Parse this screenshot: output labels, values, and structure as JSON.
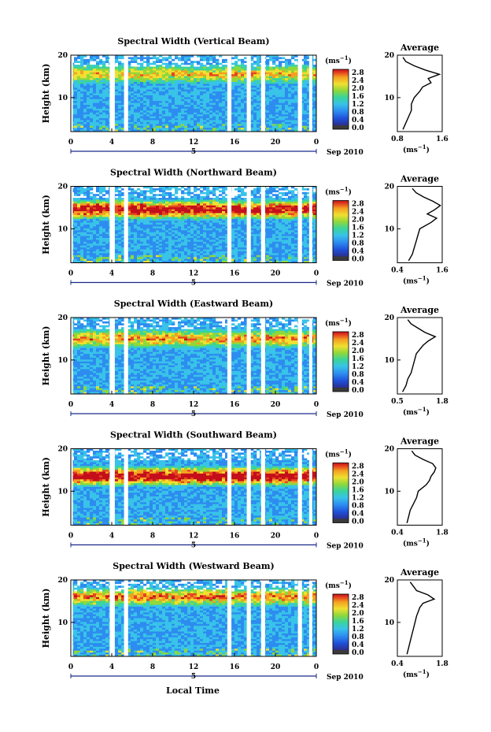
{
  "figure": {
    "x_axis_title": "Local Time",
    "colorbar_unit_main": "(ms",
    "colorbar_unit_exp": "−1",
    "colorbar_unit_close": ")",
    "colorbar_ticks": [
      "2.8",
      "2.4",
      "2.0",
      "1.6",
      "1.2",
      "0.8",
      "0.4",
      "0.0"
    ],
    "average_title": "Average",
    "profile_unit_main": "(ms",
    "profile_unit_exp": "−1",
    "profile_unit_close": ")",
    "date_day": "5",
    "date_label": "Sep 2010",
    "colors": {
      "colormap": [
        "#2b2f8f",
        "#1f4fd8",
        "#2d8cf0",
        "#38c3e8",
        "#3ad49a",
        "#8fd83a",
        "#f0e030",
        "#f4a021",
        "#e5461f",
        "#c40f1a"
      ],
      "min_band": "#3a3a3a"
    }
  },
  "chart_data": [
    {
      "type": "heatmap",
      "title": "Spectral Width (Vertical Beam)",
      "xlabel": "",
      "ylabel": "Height (km)",
      "x_ticks": [
        "0",
        "4",
        "8",
        "12",
        "16",
        "20",
        "0"
      ],
      "y_ticks": [
        "20",
        "10"
      ],
      "xlim": [
        0,
        24
      ],
      "ylim": [
        2,
        20
      ],
      "gaps_hours": [
        [
          0.0,
          0.2
        ],
        [
          3.8,
          4.3
        ],
        [
          5.2,
          5.6
        ],
        [
          15.3,
          15.7
        ],
        [
          17.2,
          17.6
        ],
        [
          18.6,
          19.0
        ],
        [
          22.2,
          22.6
        ],
        [
          23.3,
          23.6
        ]
      ],
      "profile": {
        "xlim": [
          0.8,
          1.6
        ],
        "x_ticks": [
          "0.8",
          "1.6"
        ],
        "y_ticks": [
          "20",
          "10"
        ],
        "heights": [
          2.5,
          4,
          5.5,
          7,
          8.5,
          10,
          11.5,
          12.5,
          13.5,
          14.5,
          15.5,
          16.5,
          17.5,
          18.5,
          19.5
        ],
        "values": [
          0.9,
          0.95,
          1.0,
          1.05,
          1.05,
          1.1,
          1.2,
          1.25,
          1.4,
          1.35,
          1.55,
          1.3,
          1.1,
          0.95,
          0.9
        ]
      }
    },
    {
      "type": "heatmap",
      "title": "Spectral Width (Northward Beam)",
      "xlabel": "",
      "ylabel": "Height (km)",
      "x_ticks": [
        "0",
        "4",
        "8",
        "12",
        "16",
        "20",
        "0"
      ],
      "y_ticks": [
        "20",
        "10"
      ],
      "xlim": [
        0,
        24
      ],
      "ylim": [
        2,
        20
      ],
      "gaps_hours": [
        [
          0.0,
          0.2
        ],
        [
          3.8,
          4.3
        ],
        [
          5.2,
          5.6
        ],
        [
          15.3,
          15.7
        ],
        [
          17.2,
          17.6
        ],
        [
          18.6,
          19.0
        ],
        [
          22.2,
          22.6
        ],
        [
          23.3,
          23.6
        ]
      ],
      "profile": {
        "xlim": [
          0.4,
          1.6
        ],
        "x_ticks": [
          "0.4",
          "1.6"
        ],
        "y_ticks": [
          "20",
          "10"
        ],
        "heights": [
          2.5,
          4,
          5.5,
          7,
          8.5,
          10,
          11.5,
          12.5,
          13.5,
          14.5,
          15.5,
          16.5,
          17.5,
          18.5,
          19.5
        ],
        "values": [
          0.7,
          0.8,
          0.85,
          0.9,
          0.95,
          1.0,
          1.3,
          1.45,
          1.2,
          1.4,
          1.55,
          1.35,
          1.1,
          0.9,
          0.8
        ]
      }
    },
    {
      "type": "heatmap",
      "title": "Spectral Width (Eastward Beam)",
      "xlabel": "",
      "ylabel": "Height (km)",
      "x_ticks": [
        "0",
        "4",
        "8",
        "12",
        "16",
        "20",
        "0"
      ],
      "y_ticks": [
        "20",
        "10"
      ],
      "xlim": [
        0,
        24
      ],
      "ylim": [
        2,
        20
      ],
      "gaps_hours": [
        [
          0.0,
          0.2
        ],
        [
          3.8,
          4.3
        ],
        [
          5.2,
          5.6
        ],
        [
          15.3,
          15.7
        ],
        [
          17.2,
          17.6
        ],
        [
          18.6,
          19.0
        ],
        [
          22.2,
          22.6
        ],
        [
          23.3,
          23.6
        ]
      ],
      "profile": {
        "xlim": [
          0.5,
          1.8
        ],
        "x_ticks": [
          "0.5",
          "1.8"
        ],
        "y_ticks": [
          "20",
          "10"
        ],
        "heights": [
          2.5,
          4,
          5.5,
          7,
          8.5,
          10,
          11.5,
          12.5,
          13.5,
          14.5,
          15.5,
          16.5,
          17.5,
          18.5,
          19.5
        ],
        "values": [
          0.65,
          0.75,
          0.8,
          0.9,
          0.95,
          1.0,
          1.05,
          1.15,
          1.25,
          1.4,
          1.6,
          1.3,
          1.1,
          0.9,
          0.8
        ]
      }
    },
    {
      "type": "heatmap",
      "title": "Spectral Width (Southward Beam)",
      "xlabel": "",
      "ylabel": "Height (km)",
      "x_ticks": [
        "0",
        "4",
        "8",
        "12",
        "16",
        "20",
        "0"
      ],
      "y_ticks": [
        "20",
        "10"
      ],
      "xlim": [
        0,
        24
      ],
      "ylim": [
        2,
        20
      ],
      "gaps_hours": [
        [
          0.0,
          0.2
        ],
        [
          3.8,
          4.3
        ],
        [
          5.2,
          5.6
        ],
        [
          15.3,
          15.7
        ],
        [
          17.2,
          17.6
        ],
        [
          18.6,
          19.0
        ],
        [
          22.2,
          22.6
        ],
        [
          23.3,
          23.6
        ]
      ],
      "profile": {
        "xlim": [
          0.4,
          1.8
        ],
        "x_ticks": [
          "0.4",
          "1.8"
        ],
        "y_ticks": [
          "20",
          "10"
        ],
        "heights": [
          2.5,
          4,
          5.5,
          7,
          8.5,
          10,
          11.5,
          12.5,
          13.5,
          14.5,
          15.5,
          16.5,
          17.5,
          18.5,
          19.5
        ],
        "values": [
          0.7,
          0.75,
          0.8,
          0.9,
          1.0,
          1.05,
          1.3,
          1.4,
          1.45,
          1.55,
          1.6,
          1.5,
          1.2,
          0.95,
          0.85
        ]
      }
    },
    {
      "type": "heatmap",
      "title": "Spectral Width (Westward Beam)",
      "xlabel": "Local Time",
      "ylabel": "Height (km)",
      "x_ticks": [
        "0",
        "4",
        "8",
        "12",
        "16",
        "20",
        "0"
      ],
      "y_ticks": [
        "20",
        "10"
      ],
      "xlim": [
        0,
        24
      ],
      "ylim": [
        2,
        20
      ],
      "gaps_hours": [
        [
          0.0,
          0.2
        ],
        [
          3.8,
          4.3
        ],
        [
          5.2,
          5.6
        ],
        [
          15.3,
          15.7
        ],
        [
          17.2,
          17.6
        ],
        [
          18.6,
          19.0
        ],
        [
          22.2,
          22.6
        ],
        [
          23.3,
          23.6
        ]
      ],
      "profile": {
        "xlim": [
          0.4,
          1.8
        ],
        "x_ticks": [
          "0.4",
          "1.8"
        ],
        "y_ticks": [
          "20",
          "10"
        ],
        "heights": [
          2.5,
          4,
          5.5,
          7,
          8.5,
          10,
          11.5,
          12.5,
          13.5,
          14.5,
          15.5,
          16.5,
          17.5,
          18.5,
          19.5
        ],
        "values": [
          0.7,
          0.75,
          0.8,
          0.85,
          0.9,
          0.95,
          1.0,
          1.05,
          1.1,
          1.2,
          1.55,
          1.35,
          1.0,
          0.9,
          0.8
        ]
      }
    }
  ]
}
